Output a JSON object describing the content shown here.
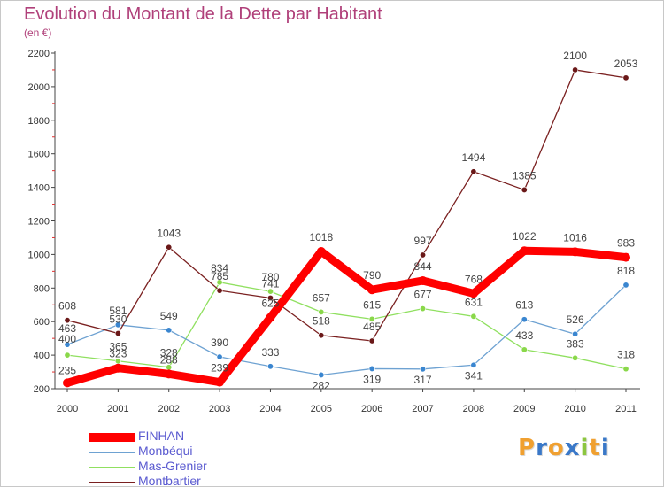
{
  "title": "Evolution du Montant de la Dette par Habitant",
  "subtitle": "(en €)",
  "logo": {
    "text": "Proxiti",
    "letters": [
      {
        "ch": "P",
        "color": "#f0a030"
      },
      {
        "ch": "r",
        "color": "#3a78c8"
      },
      {
        "ch": "o",
        "color": "#f0a030"
      },
      {
        "ch": "x",
        "color": "#3a78c8"
      },
      {
        "ch": "i",
        "color": "#8cc63f"
      },
      {
        "ch": "t",
        "color": "#f0a030"
      },
      {
        "ch": "i",
        "color": "#3a78c8"
      }
    ]
  },
  "chart_data": {
    "type": "line",
    "x": [
      "2000",
      "2001",
      "2002",
      "2003",
      "2004",
      "2005",
      "2006",
      "2007",
      "2008",
      "2009",
      "2010",
      "2011"
    ],
    "ylim": [
      200,
      2200
    ],
    "yticks": [
      200,
      400,
      600,
      800,
      1000,
      1200,
      1400,
      1600,
      1800,
      2000,
      2200
    ],
    "grid": false,
    "legend": "bottom-left",
    "series": [
      {
        "name": "FINHAN",
        "color": "#ff0000",
        "values": [
          235,
          323,
          288,
          239,
          625,
          1018,
          790,
          844,
          768,
          1022,
          1016,
          983
        ]
      },
      {
        "name": "Monbéqui",
        "color": "#6ea2d2",
        "values": [
          463,
          581,
          549,
          390,
          333,
          282,
          319,
          317,
          341,
          613,
          526,
          818
        ]
      },
      {
        "name": "Mas-Grenier",
        "color": "#90e060",
        "values": [
          400,
          365,
          328,
          834,
          780,
          657,
          615,
          677,
          631,
          433,
          383,
          318
        ]
      },
      {
        "name": "Montbartier",
        "color": "#7a2020",
        "values": [
          608,
          530,
          1043,
          785,
          741,
          518,
          485,
          997,
          1494,
          1385,
          2100,
          2053
        ]
      }
    ]
  }
}
